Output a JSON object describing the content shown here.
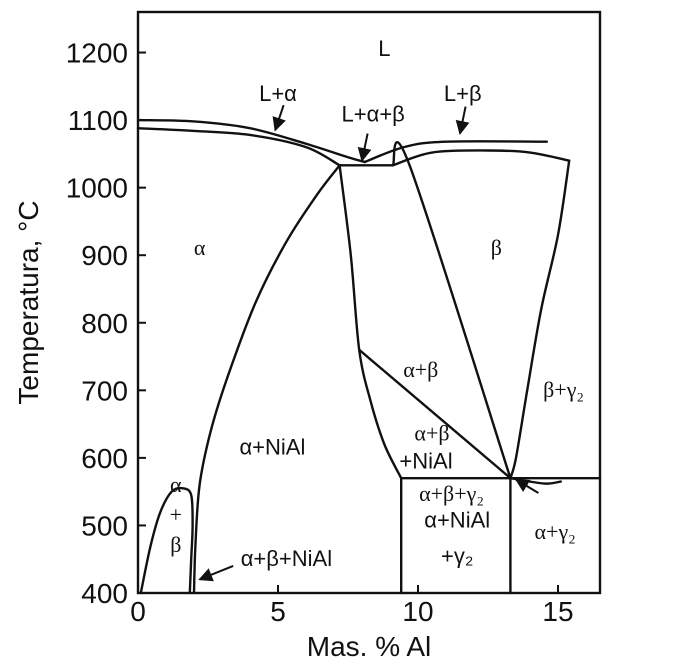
{
  "chart_data": {
    "type": "phase-diagram",
    "xlabel": "Mas. % Al",
    "ylabel": "Temperatura, °C",
    "xlim": [
      0,
      16.5
    ],
    "ylim": [
      400,
      1260
    ],
    "x_ticks": [
      "0",
      "5",
      "10",
      "15"
    ],
    "y_ticks": [
      "400",
      "500",
      "600",
      "700",
      "800",
      "900",
      "1000",
      "1100",
      "1200"
    ],
    "x_tick_values": [
      0,
      5,
      10,
      15
    ],
    "y_tick_values": [
      400,
      500,
      600,
      700,
      800,
      900,
      1000,
      1100,
      1200
    ],
    "region_labels": [
      {
        "id": "L",
        "text": "L",
        "x": 8.8,
        "y": 1195
      },
      {
        "id": "L+alpha",
        "text": "L+α",
        "x": 5.0,
        "y": 1128
      },
      {
        "id": "L+alpha+beta",
        "text": "L+α+β",
        "x": 8.4,
        "y": 1098
      },
      {
        "id": "L+beta",
        "text": "L+β",
        "x": 11.6,
        "y": 1128
      },
      {
        "id": "alpha",
        "text": "α",
        "x": 2.2,
        "y": 900
      },
      {
        "id": "beta",
        "text": "β",
        "x": 12.8,
        "y": 900
      },
      {
        "id": "alpha+beta",
        "text": "α+β",
        "x": 10.1,
        "y": 720
      },
      {
        "id": "beta+gamma2",
        "text": "β+γ₂",
        "x": 15.2,
        "y": 690
      },
      {
        "id": "alpha+beta+NiAl-mid",
        "text": "α+β+NiAl",
        "x": 10.5,
        "y": 605
      },
      {
        "id": "alpha+NiAl",
        "text": "α+NiAl",
        "x": 4.8,
        "y": 605
      },
      {
        "id": "alpha+beta+gamma2",
        "text": "α+β+γ₂",
        "x": 11.2,
        "y": 536
      },
      {
        "id": "alpha+NiAl+gamma2",
        "text": "α+NiAl +γ₂",
        "x": 11.4,
        "y": 476
      },
      {
        "id": "alpha+gamma2",
        "text": "α+γ₂",
        "x": 14.9,
        "y": 480
      },
      {
        "id": "alpha+beta-left",
        "text": "α + β",
        "x": 1.35,
        "y": 505
      },
      {
        "id": "alpha+beta+NiAl-bottom",
        "text": "α+β+NiAl",
        "x": 5.3,
        "y": 440
      }
    ],
    "boundaries": [
      [
        [
          0,
          1100
        ],
        [
          2,
          1098
        ],
        [
          4,
          1088
        ],
        [
          6,
          1065
        ],
        [
          7.5,
          1045
        ],
        [
          8.1,
          1038
        ]
      ],
      [
        [
          0,
          1088
        ],
        [
          2,
          1084
        ],
        [
          4,
          1078
        ],
        [
          6,
          1060
        ],
        [
          7.2,
          1033
        ]
      ],
      [
        [
          7.2,
          1033
        ],
        [
          9.1,
          1033
        ]
      ],
      [
        [
          8.1,
          1038
        ],
        [
          9.5,
          1060
        ],
        [
          11.0,
          1068
        ],
        [
          14.6,
          1068
        ]
      ],
      [
        [
          9.1,
          1033
        ],
        [
          10.5,
          1052
        ],
        [
          12.5,
          1055
        ],
        [
          14.0,
          1052
        ],
        [
          15.4,
          1040
        ]
      ],
      [
        [
          7.2,
          1033
        ],
        [
          6.4,
          990
        ],
        [
          5.3,
          920
        ],
        [
          4.2,
          830
        ],
        [
          3.2,
          720
        ],
        [
          2.6,
          640
        ],
        [
          2.2,
          560
        ],
        [
          2.05,
          470
        ],
        [
          2.0,
          400
        ]
      ],
      [
        [
          7.2,
          1033
        ],
        [
          7.6,
          900
        ],
        [
          7.9,
          760
        ],
        [
          8.3,
          685
        ],
        [
          8.8,
          620
        ],
        [
          9.4,
          570
        ]
      ],
      [
        [
          9.1,
          1033
        ],
        [
          9.7,
          1033
        ],
        [
          13.3,
          570
        ]
      ],
      [
        [
          15.4,
          1040
        ],
        [
          15.0,
          930
        ],
        [
          14.4,
          820
        ],
        [
          13.9,
          700
        ],
        [
          13.5,
          600
        ],
        [
          13.3,
          570
        ]
      ],
      [
        [
          7.9,
          760
        ],
        [
          13.3,
          570
        ]
      ],
      [
        [
          9.4,
          570
        ],
        [
          16.5,
          570
        ]
      ],
      [
        [
          9.4,
          570
        ],
        [
          9.4,
          400
        ]
      ],
      [
        [
          13.3,
          570
        ],
        [
          13.3,
          400
        ]
      ],
      [
        [
          13.3,
          570
        ],
        [
          14.5,
          562
        ],
        [
          15.1,
          565
        ]
      ],
      [
        [
          0.1,
          400
        ],
        [
          0.45,
          470
        ],
        [
          0.8,
          520
        ],
        [
          1.2,
          550
        ],
        [
          1.6,
          555
        ],
        [
          1.9,
          545
        ],
        [
          1.95,
          500
        ],
        [
          1.9,
          450
        ],
        [
          1.85,
          400
        ]
      ]
    ],
    "arrows": [
      {
        "from": [
          5.2,
          1122
        ],
        "to": [
          4.9,
          1085
        ]
      },
      {
        "from": [
          8.2,
          1080
        ],
        "to": [
          8.0,
          1040
        ]
      },
      {
        "from": [
          11.7,
          1120
        ],
        "to": [
          11.5,
          1080
        ]
      },
      {
        "from": [
          14.3,
          548
        ],
        "to": [
          13.5,
          568
        ]
      },
      {
        "from": [
          3.4,
          440
        ],
        "to": [
          2.2,
          420
        ]
      }
    ]
  }
}
